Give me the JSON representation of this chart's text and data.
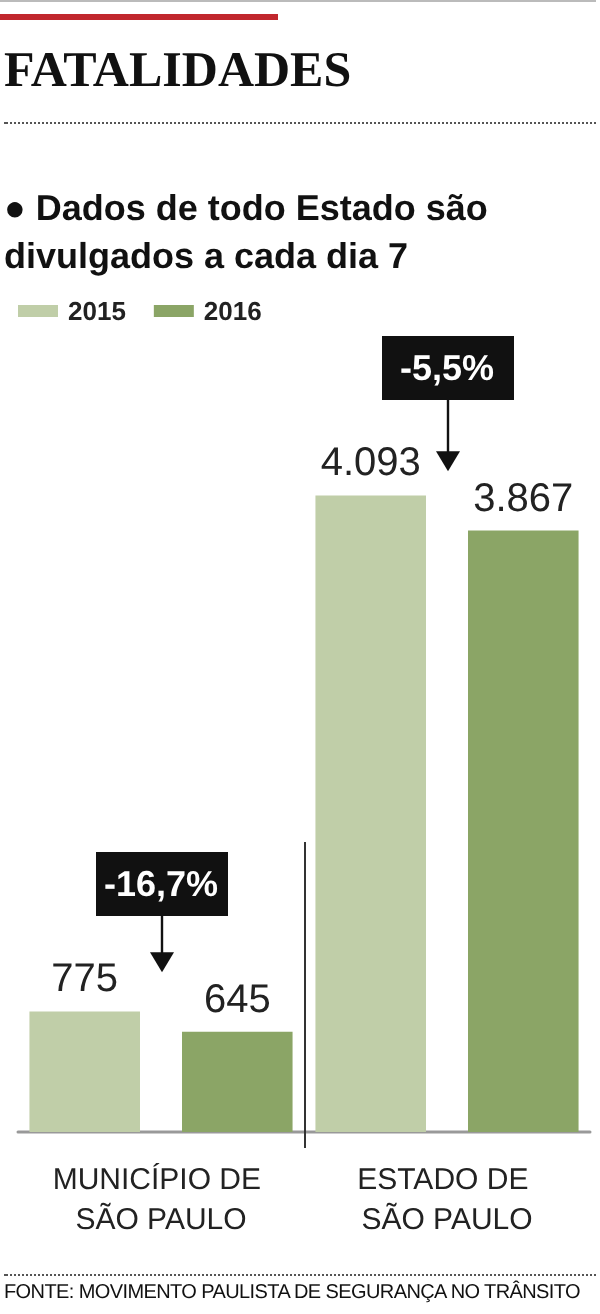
{
  "chart_data": {
    "type": "bar",
    "title": "FATALIDADES",
    "subtitle": "● Dados de todo Estado são divulgados a cada dia 7",
    "categories": [
      "MUNICÍPIO DE SÃO PAULO",
      "ESTADO DE SÃO PAULO"
    ],
    "series": [
      {
        "name": "2015",
        "color": "#c0cea8",
        "values": [
          775,
          4093
        ],
        "value_labels": [
          "775",
          "4.093"
        ]
      },
      {
        "name": "2016",
        "color": "#8ba566",
        "values": [
          645,
          3867
        ],
        "value_labels": [
          "645",
          "3.867"
        ]
      }
    ],
    "annotations": [
      "-16,7%",
      "-5,5%",
      "FONTE: MOVIMENTO PAULISTA DE SEGURANÇA NO TRÂNSITO"
    ],
    "legend": "top left"
  }
}
